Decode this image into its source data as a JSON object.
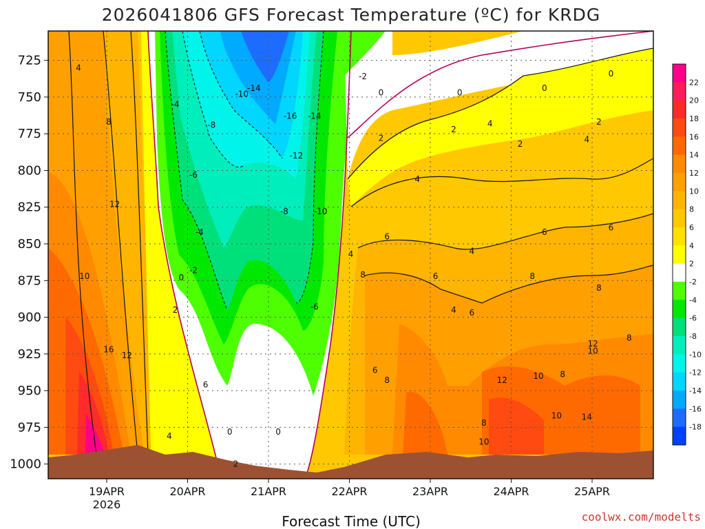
{
  "chart_data": {
    "type": "heatmap",
    "title": "2026041806 GFS Forecast Temperature (ºC) for KRDG",
    "xlabel": "Forecast Time (UTC)",
    "ylabel": "",
    "credit": "coolwx.com/modelts",
    "y_axis": {
      "ticks": [
        725,
        750,
        775,
        800,
        825,
        850,
        875,
        900,
        925,
        950,
        975,
        1000
      ],
      "range": [
        705,
        1010
      ],
      "inverted": true
    },
    "x_axis": {
      "ticks": [
        {
          "label": "19APR",
          "sublabel": "2026"
        },
        {
          "label": "20APR",
          "sublabel": ""
        },
        {
          "label": "21APR",
          "sublabel": ""
        },
        {
          "label": "22APR",
          "sublabel": ""
        },
        {
          "label": "23APR",
          "sublabel": ""
        },
        {
          "label": "24APR",
          "sublabel": ""
        },
        {
          "label": "25APR",
          "sublabel": ""
        }
      ]
    },
    "grid": true,
    "colorbar": {
      "placement": "right",
      "labels": [
        "22",
        "20",
        "18",
        "16",
        "14",
        "12",
        "10",
        "8",
        "6",
        "4",
        "2",
        "-2",
        "-4",
        "-6",
        "-8",
        "-10",
        "-12",
        "-14",
        "-16",
        "-18"
      ],
      "colors": [
        "#ff0088",
        "#ff1e5a",
        "#ff2a2a",
        "#ff4a12",
        "#ff6a00",
        "#ff8a00",
        "#ffa000",
        "#ffb400",
        "#ffc800",
        "#ffe000",
        "#ffff00",
        "#ffffff",
        "#4dff00",
        "#00e800",
        "#00e07a",
        "#00eebb",
        "#00f4ea",
        "#00d6ff",
        "#00aaff",
        "#1e6cff",
        "#0040ff"
      ]
    },
    "contour_labels": [
      {
        "t": 0.05,
        "p": 730,
        "text": "4"
      },
      {
        "t": 0.21,
        "p": 755,
        "text": "-4"
      },
      {
        "t": 0.32,
        "p": 748,
        "text": "-10"
      },
      {
        "t": 0.34,
        "p": 744,
        "text": "-14"
      },
      {
        "t": 0.4,
        "p": 763,
        "text": "-16"
      },
      {
        "t": 0.44,
        "p": 763,
        "text": "-14"
      },
      {
        "t": 0.27,
        "p": 769,
        "text": "-8"
      },
      {
        "t": 0.41,
        "p": 790,
        "text": "-12"
      },
      {
        "t": 0.24,
        "p": 803,
        "text": "-6"
      },
      {
        "t": 0.39,
        "p": 828,
        "text": "-8"
      },
      {
        "t": 0.45,
        "p": 828,
        "text": "-10"
      },
      {
        "t": 0.25,
        "p": 842,
        "text": "-4"
      },
      {
        "t": 0.24,
        "p": 868,
        "text": "-2"
      },
      {
        "t": 0.22,
        "p": 873,
        "text": "0"
      },
      {
        "t": 0.21,
        "p": 895,
        "text": "2"
      },
      {
        "t": 0.26,
        "p": 946,
        "text": "6"
      },
      {
        "t": 0.2,
        "p": 981,
        "text": "4"
      },
      {
        "t": 0.3,
        "p": 978,
        "text": "0"
      },
      {
        "t": 0.38,
        "p": 978,
        "text": "0"
      },
      {
        "t": 0.31,
        "p": 1000,
        "text": "2"
      },
      {
        "t": 0.44,
        "p": 893,
        "text": "-6"
      },
      {
        "t": 0.52,
        "p": 736,
        "text": "-2"
      },
      {
        "t": 0.55,
        "p": 747,
        "text": "0"
      },
      {
        "t": 0.55,
        "p": 778,
        "text": "2"
      },
      {
        "t": 0.68,
        "p": 747,
        "text": "0"
      },
      {
        "t": 0.82,
        "p": 744,
        "text": "0"
      },
      {
        "t": 0.93,
        "p": 734,
        "text": "0"
      },
      {
        "t": 0.61,
        "p": 806,
        "text": "4"
      },
      {
        "t": 0.73,
        "p": 768,
        "text": "4"
      },
      {
        "t": 0.67,
        "p": 772,
        "text": "2"
      },
      {
        "t": 0.78,
        "p": 782,
        "text": "2"
      },
      {
        "t": 0.91,
        "p": 767,
        "text": "2"
      },
      {
        "t": 0.89,
        "p": 779,
        "text": "4"
      },
      {
        "t": 0.5,
        "p": 857,
        "text": "4"
      },
      {
        "t": 0.56,
        "p": 845,
        "text": "6"
      },
      {
        "t": 0.52,
        "p": 871,
        "text": "8"
      },
      {
        "t": 0.64,
        "p": 872,
        "text": "6"
      },
      {
        "t": 0.67,
        "p": 895,
        "text": "4"
      },
      {
        "t": 0.7,
        "p": 855,
        "text": "4"
      },
      {
        "t": 0.7,
        "p": 897,
        "text": "6"
      },
      {
        "t": 0.82,
        "p": 842,
        "text": "6"
      },
      {
        "t": 0.93,
        "p": 839,
        "text": "6"
      },
      {
        "t": 0.8,
        "p": 872,
        "text": "8"
      },
      {
        "t": 0.91,
        "p": 880,
        "text": "8"
      },
      {
        "t": 0.96,
        "p": 914,
        "text": "8"
      },
      {
        "t": 0.54,
        "p": 936,
        "text": "6"
      },
      {
        "t": 0.56,
        "p": 943,
        "text": "8"
      },
      {
        "t": 0.75,
        "p": 943,
        "text": "12"
      },
      {
        "t": 0.81,
        "p": 940,
        "text": "10"
      },
      {
        "t": 0.85,
        "p": 939,
        "text": "8"
      },
      {
        "t": 0.9,
        "p": 923,
        "text": "10"
      },
      {
        "t": 0.9,
        "p": 918,
        "text": "12"
      },
      {
        "t": 0.89,
        "p": 968,
        "text": "14"
      },
      {
        "t": 0.84,
        "p": 967,
        "text": "10"
      },
      {
        "t": 0.72,
        "p": 972,
        "text": "8"
      },
      {
        "t": 0.72,
        "p": 985,
        "text": "10"
      },
      {
        "t": 0.06,
        "p": 872,
        "text": "10"
      },
      {
        "t": 0.11,
        "p": 823,
        "text": "12"
      },
      {
        "t": 0.1,
        "p": 922,
        "text": "16"
      },
      {
        "t": 0.13,
        "p": 926,
        "text": "12"
      },
      {
        "t": 0.1,
        "p": 767,
        "text": "8"
      }
    ]
  }
}
